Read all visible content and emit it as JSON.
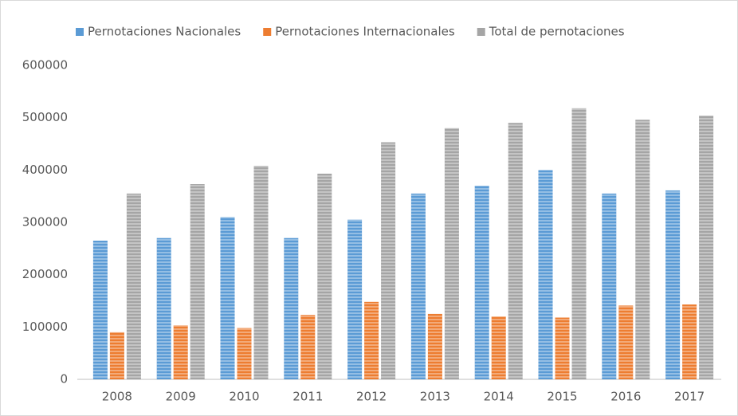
{
  "chart_data": {
    "type": "bar",
    "categories": [
      "2008",
      "2009",
      "2010",
      "2011",
      "2012",
      "2013",
      "2014",
      "2015",
      "2016",
      "2017"
    ],
    "series": [
      {
        "name": "Pernotaciones Nacionales",
        "color": "#5b9bd5",
        "values": [
          265000,
          270000,
          310000,
          270000,
          305000,
          355000,
          370000,
          400000,
          355000,
          361000
        ]
      },
      {
        "name": "Pernotaciones Internacionales",
        "color": "#ed7d31",
        "values": [
          90000,
          103000,
          98000,
          123000,
          148000,
          125000,
          120000,
          118000,
          141000,
          143000
        ]
      },
      {
        "name": "Total de pernotaciones",
        "color": "#a5a5a5",
        "values": [
          355000,
          373000,
          408000,
          393000,
          453000,
          480000,
          490000,
          518000,
          496000,
          504000
        ]
      }
    ],
    "ylim": [
      0,
      600000
    ],
    "yticks": [
      0,
      100000,
      200000,
      300000,
      400000,
      500000,
      600000
    ],
    "legend": "top",
    "grid": false
  }
}
